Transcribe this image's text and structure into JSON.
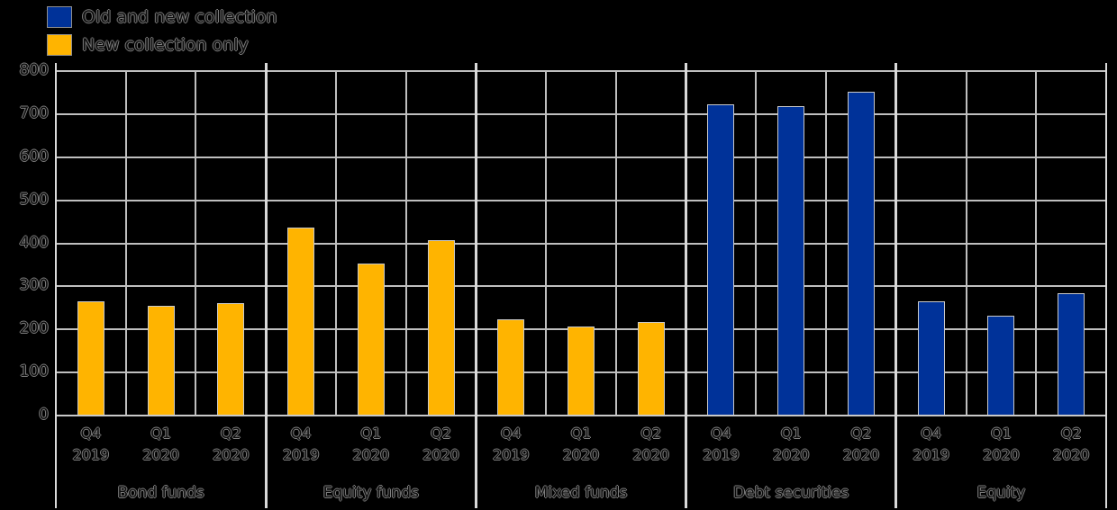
{
  "legend": {
    "items": [
      {
        "label": "Old and new collection",
        "color_key": "old_and_new"
      },
      {
        "label": "New collection only",
        "color_key": "new_only"
      }
    ]
  },
  "chart_data": {
    "type": "bar",
    "title": "",
    "xlabel": "",
    "ylabel": "",
    "ylim": [
      0,
      800
    ],
    "ytick_step": 100,
    "grid": true,
    "legend_position": "top-left",
    "background": "#000000",
    "gridline_color": "#bfbfbf",
    "colors": {
      "old_and_new": "#003299",
      "new_only": "#FFB400"
    },
    "quarters": [
      "Q4 2019",
      "Q1 2020",
      "Q2 2020"
    ],
    "categories": [
      "Bond funds",
      "Equity funds",
      "Mixed funds",
      "Debt securities",
      "Equity"
    ],
    "groups": [
      {
        "category": "Bond funds",
        "color_key": "new_only",
        "values": [
          265,
          255,
          262
        ]
      },
      {
        "category": "Equity funds",
        "color_key": "new_only",
        "values": [
          437,
          352,
          407
        ]
      },
      {
        "category": "Mixed funds",
        "color_key": "new_only",
        "values": [
          224,
          206,
          217
        ]
      },
      {
        "category": "Debt securities",
        "color_key": "old_and_new",
        "values": [
          722,
          718,
          752
        ]
      },
      {
        "category": "Equity",
        "color_key": "old_and_new",
        "values": [
          265,
          231,
          284
        ]
      }
    ]
  }
}
